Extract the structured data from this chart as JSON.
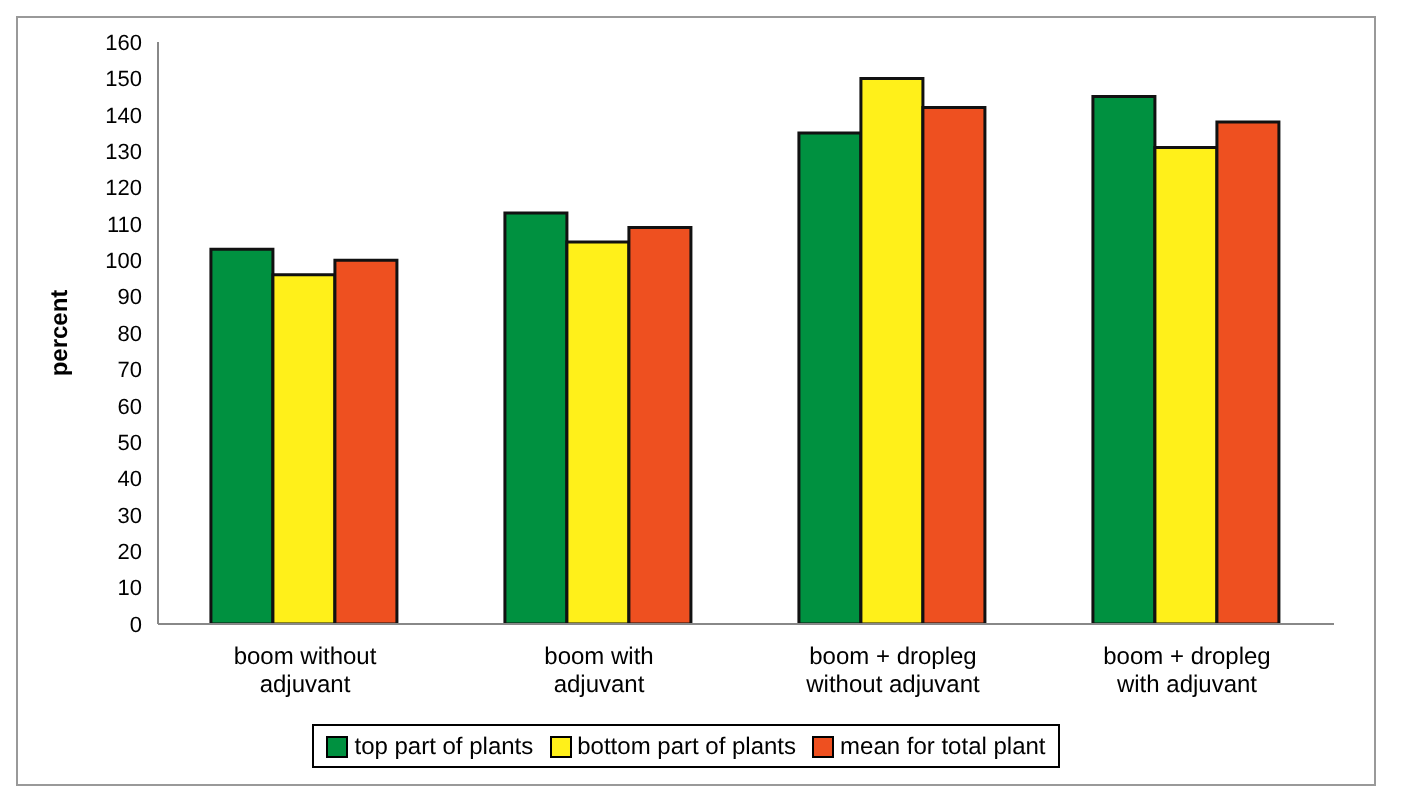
{
  "chart_data": {
    "type": "bar",
    "ylabel": "percent",
    "categories": [
      "boom without adjuvant",
      "boom with adjuvant",
      "boom + dropleg without adjuvant",
      "boom + dropleg with adjuvant"
    ],
    "series": [
      {
        "name": "top part of plants",
        "color": "#009140",
        "values": [
          103,
          113,
          135,
          145
        ]
      },
      {
        "name": "bottom part of plants",
        "color": "#fff01a",
        "values": [
          96,
          105,
          150,
          131
        ]
      },
      {
        "name": "mean for total plant",
        "color": "#ee5020",
        "values": [
          100,
          109,
          142,
          138
        ]
      }
    ],
    "ylim": [
      0,
      160
    ],
    "yticks": [
      0,
      10,
      20,
      30,
      40,
      50,
      60,
      70,
      80,
      90,
      100,
      110,
      120,
      130,
      140,
      150,
      160
    ],
    "grid": false,
    "legend": "bottom"
  }
}
